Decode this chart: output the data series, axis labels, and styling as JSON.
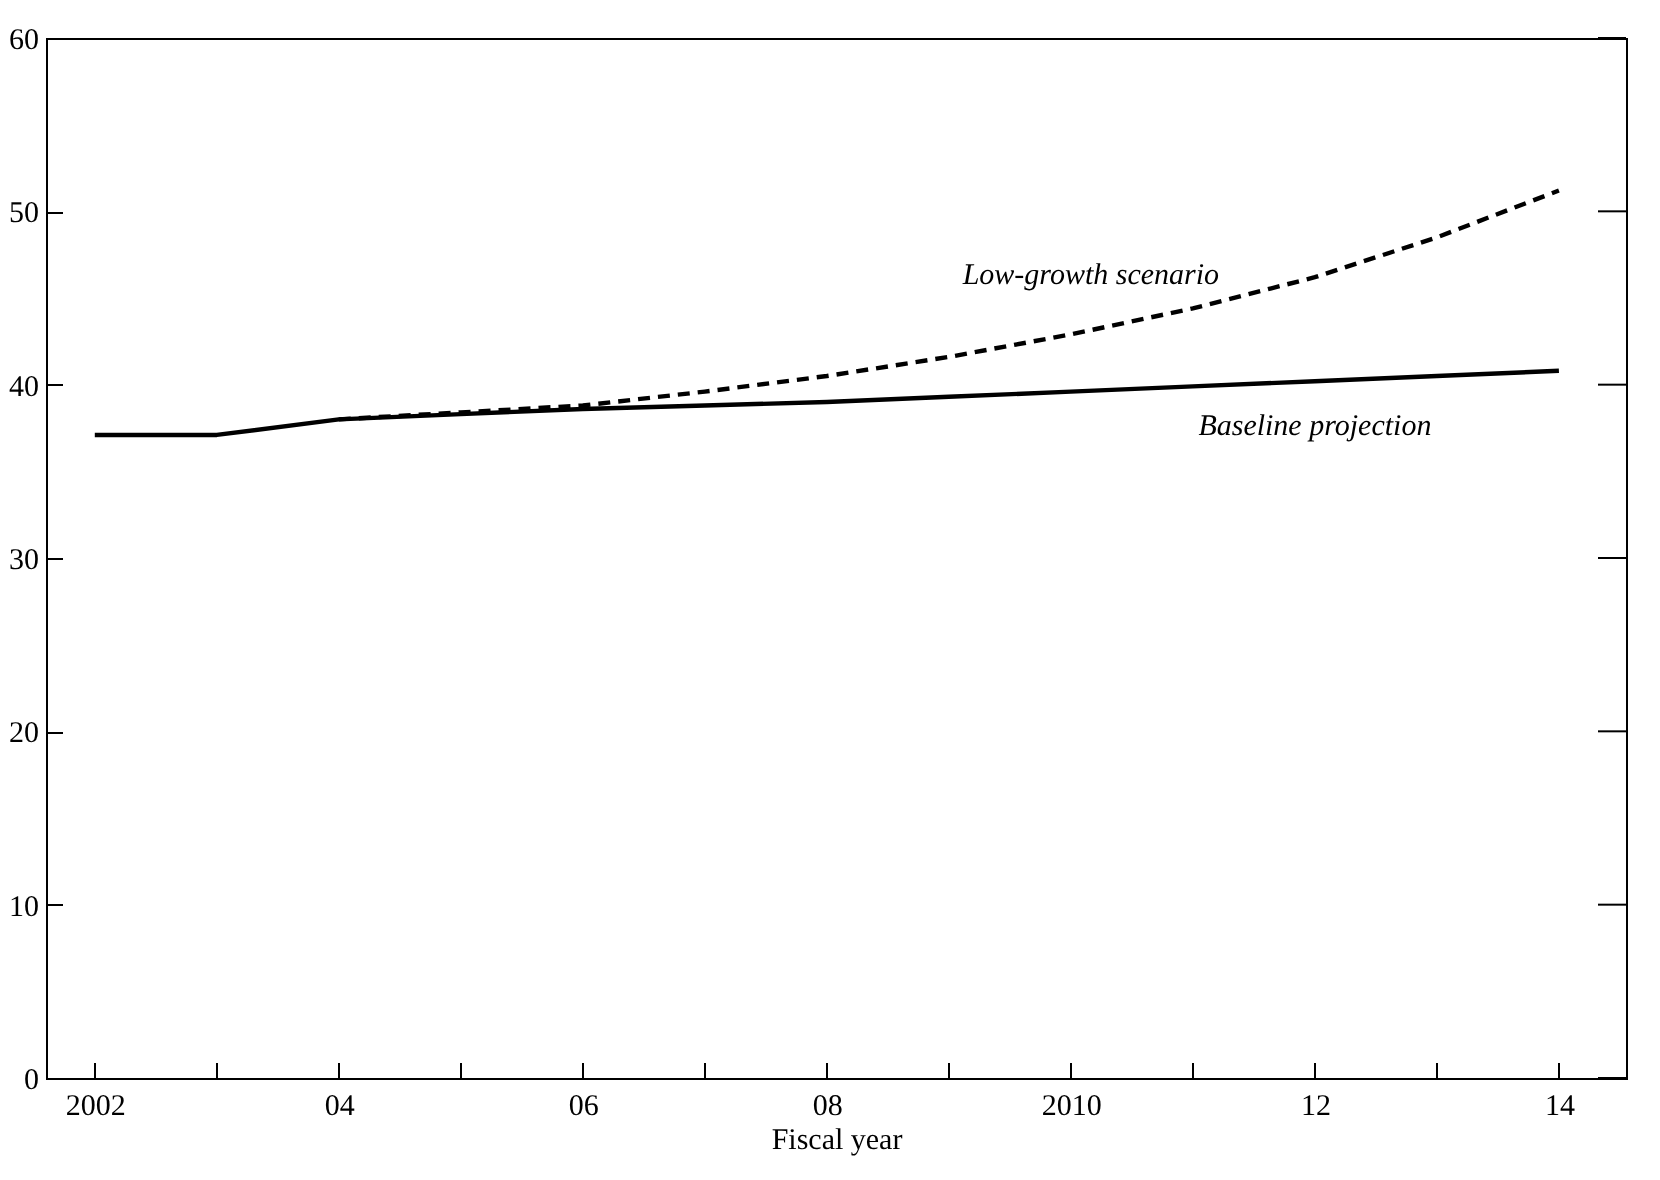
{
  "chart_data": {
    "type": "line",
    "xlabel": "Fiscal year",
    "x": [
      2002,
      2003,
      2004,
      2005,
      2006,
      2007,
      2008,
      2009,
      2010,
      2011,
      2012,
      2013,
      2014
    ],
    "series": [
      {
        "name": "Low-growth scenario",
        "color": "#000000",
        "line_style": "dashed",
        "values": [
          null,
          null,
          38.0,
          38.4,
          38.8,
          39.6,
          40.5,
          41.6,
          42.9,
          44.4,
          46.2,
          48.5,
          51.2
        ]
      },
      {
        "name": "Baseline projection",
        "color": "#000000",
        "line_style": "solid",
        "values": [
          37.1,
          37.1,
          38.0,
          38.3,
          38.6,
          38.8,
          39.0,
          39.3,
          39.6,
          39.9,
          40.2,
          40.5,
          40.8
        ]
      }
    ],
    "xlim": [
      2001.6,
      2014.55
    ],
    "xticks": [
      2002,
      {
        "value": 2003,
        "label": null
      },
      {
        "value": 2004,
        "label": "04"
      },
      {
        "value": 2005,
        "label": null
      },
      {
        "value": 2006,
        "label": "06"
      },
      {
        "value": 2007,
        "label": null
      },
      {
        "value": 2008,
        "label": "08"
      },
      {
        "value": 2009,
        "label": null
      },
      2010,
      {
        "value": 2011,
        "label": null
      },
      {
        "value": 2012,
        "label": "12"
      },
      {
        "value": 2013,
        "label": null
      },
      {
        "value": 2014,
        "label": "14"
      }
    ],
    "ylim": [
      0,
      60
    ],
    "yticks": [
      0,
      10,
      20,
      30,
      40,
      50,
      60
    ],
    "grid": false,
    "legend": false
  }
}
